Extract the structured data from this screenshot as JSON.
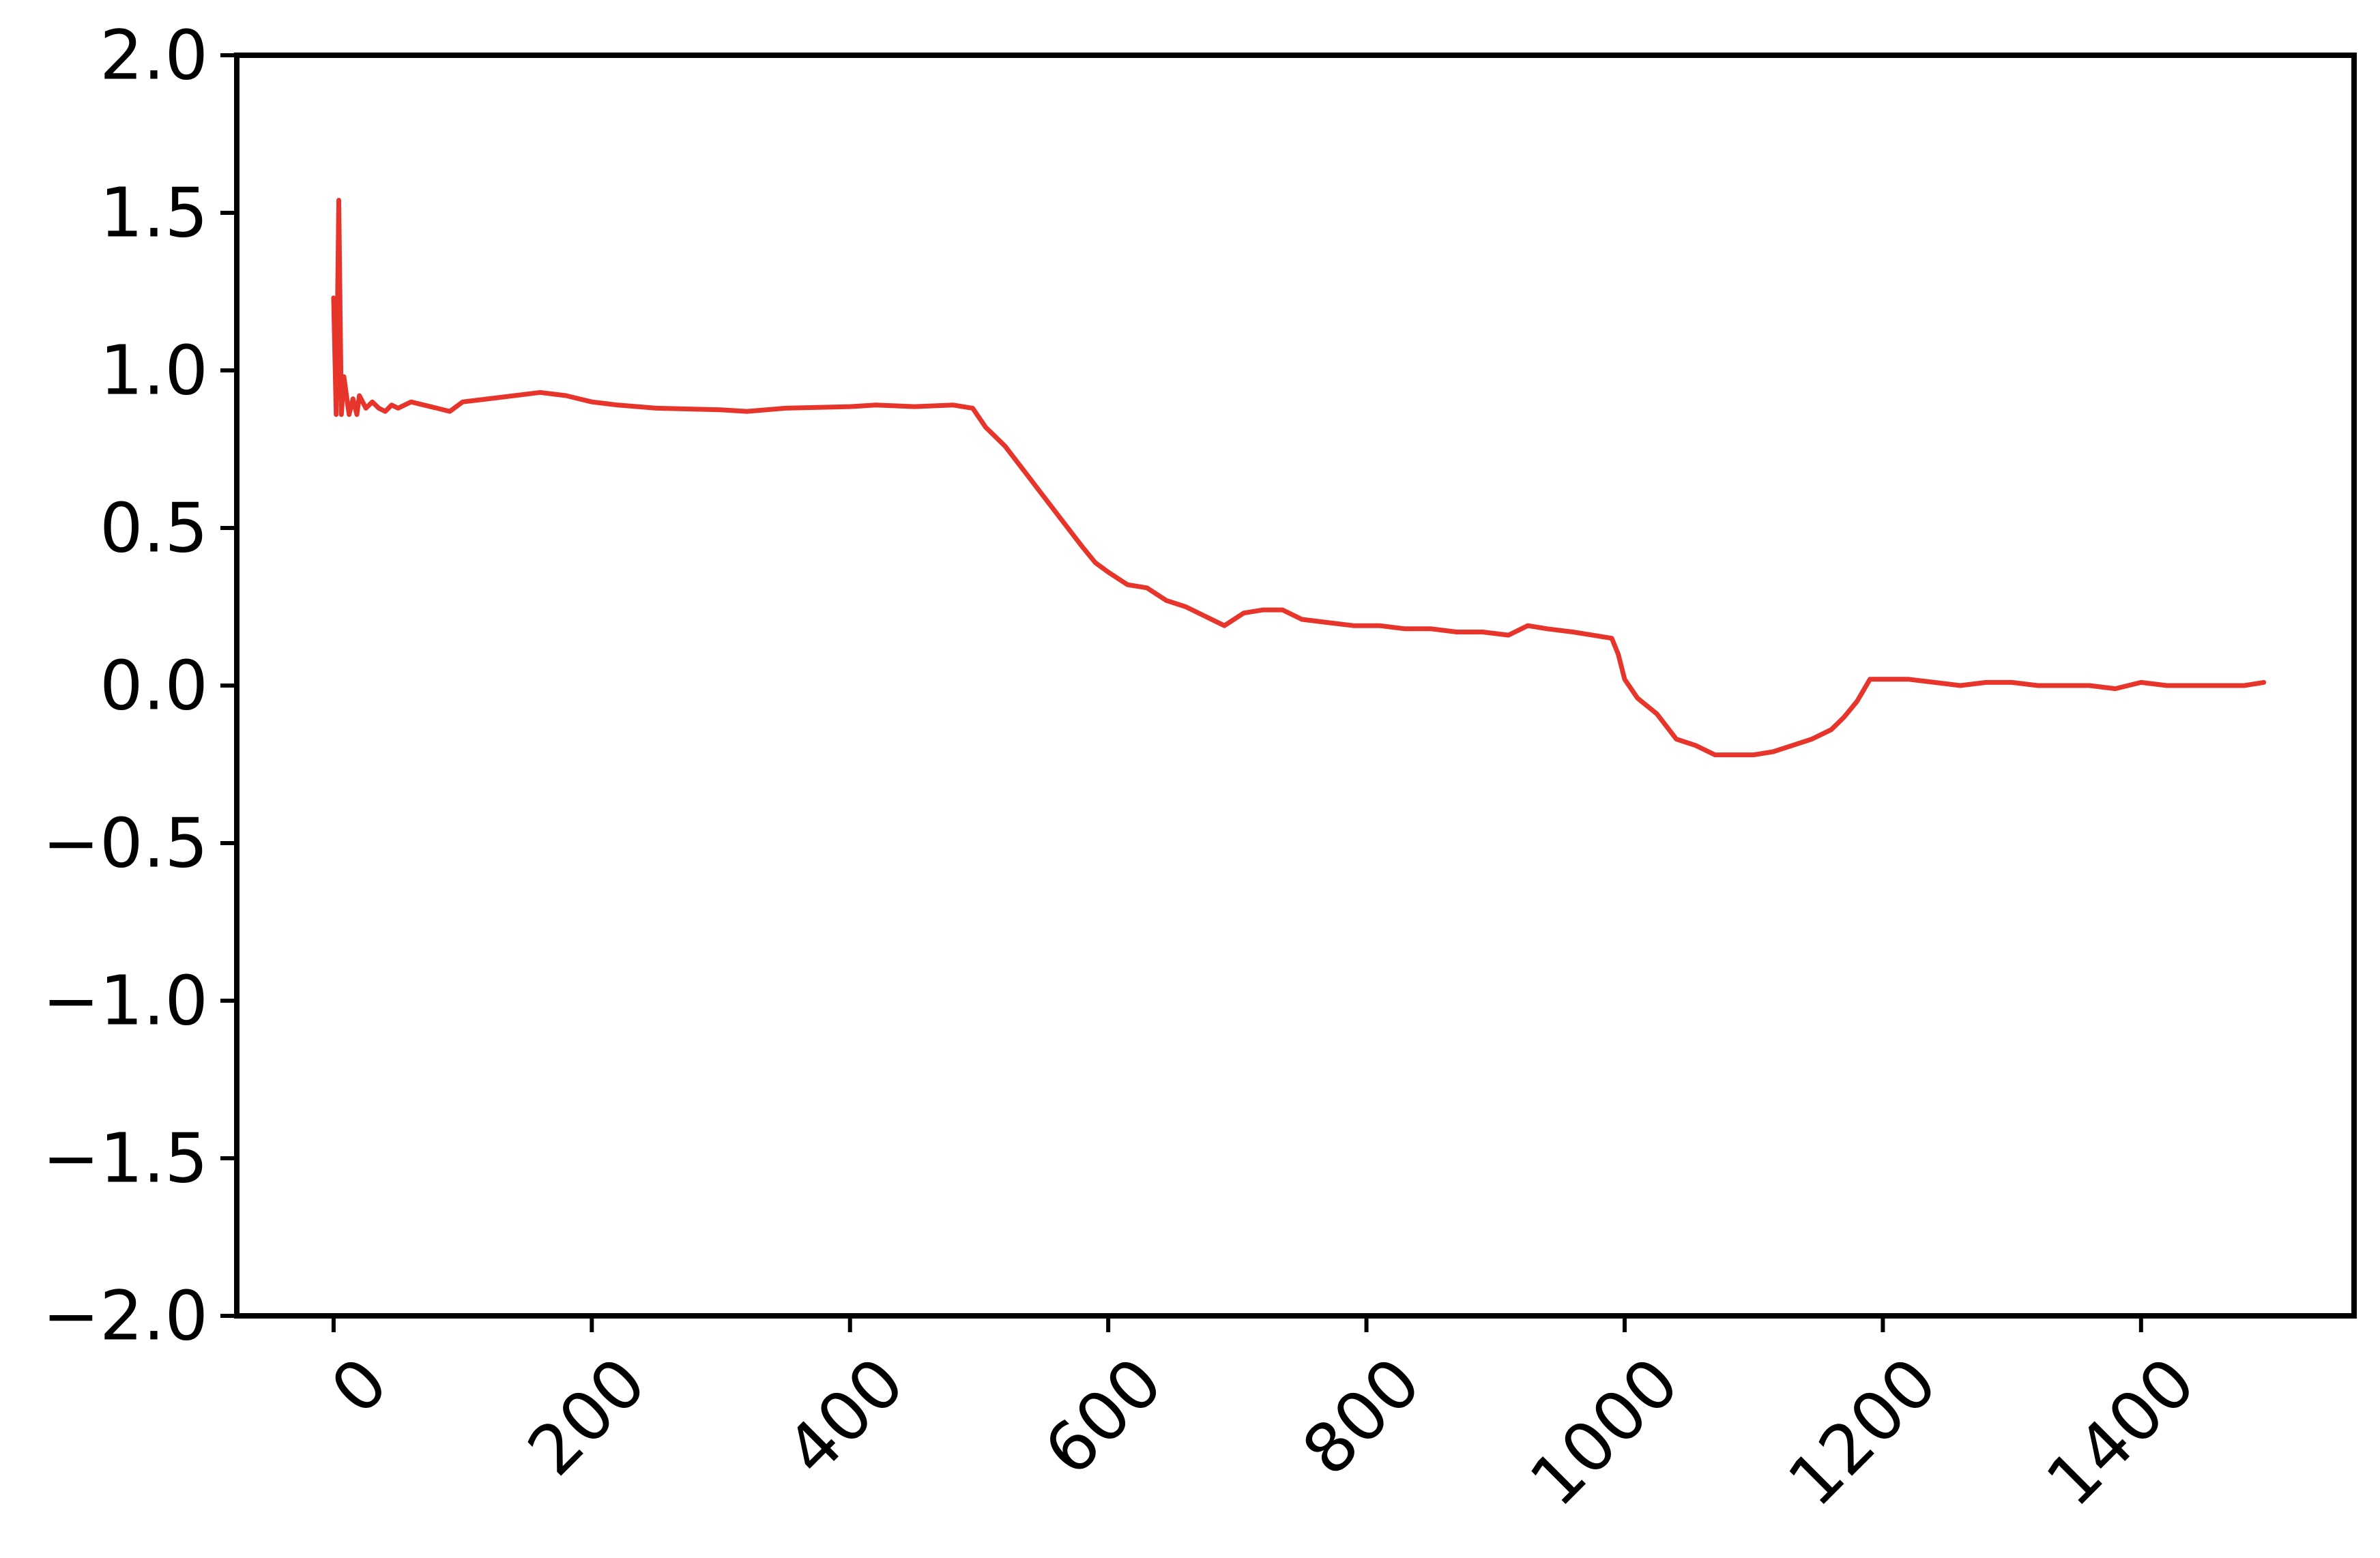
{
  "chart_data": {
    "type": "line",
    "title": "",
    "xlabel": "",
    "ylabel": "",
    "xlim": [
      -75,
      1565
    ],
    "ylim": [
      -2.0,
      2.0
    ],
    "x_ticks": [
      0,
      200,
      400,
      600,
      800,
      1000,
      1200,
      1400
    ],
    "x_tick_labels": [
      "0",
      "200",
      "400",
      "600",
      "800",
      "1000",
      "1200",
      "1400"
    ],
    "y_ticks": [
      2.0,
      1.5,
      1.0,
      0.5,
      0.0,
      -0.5,
      -1.0,
      -1.5,
      -2.0
    ],
    "y_tick_labels": [
      "2.0",
      "1.5",
      "1.0",
      "0.5",
      "0.0",
      "−0.5",
      "−1.0",
      "−1.5",
      "−2.0"
    ],
    "grid": false,
    "legend": "none",
    "series": [
      {
        "color": "#e8352b",
        "x": [
          0,
          2,
          4,
          6,
          8,
          10,
          12,
          15,
          18,
          20,
          25,
          30,
          35,
          40,
          45,
          50,
          60,
          70,
          80,
          90,
          100,
          120,
          140,
          160,
          180,
          200,
          220,
          250,
          300,
          320,
          350,
          400,
          420,
          450,
          480,
          495,
          505,
          520,
          535,
          550,
          565,
          580,
          590,
          600,
          615,
          630,
          645,
          660,
          675,
          690,
          705,
          720,
          735,
          750,
          770,
          790,
          810,
          830,
          850,
          870,
          890,
          910,
          925,
          940,
          960,
          975,
          990,
          995,
          1000,
          1010,
          1025,
          1040,
          1055,
          1070,
          1085,
          1100,
          1115,
          1130,
          1145,
          1160,
          1170,
          1180,
          1190,
          1200,
          1220,
          1240,
          1260,
          1280,
          1300,
          1320,
          1340,
          1360,
          1380,
          1400,
          1420,
          1440,
          1460,
          1480,
          1495
        ],
        "y": [
          1.23,
          0.86,
          1.54,
          0.86,
          0.98,
          0.92,
          0.86,
          0.91,
          0.86,
          0.92,
          0.88,
          0.9,
          0.88,
          0.87,
          0.89,
          0.88,
          0.9,
          0.89,
          0.88,
          0.87,
          0.9,
          0.91,
          0.92,
          0.93,
          0.92,
          0.9,
          0.89,
          0.88,
          0.875,
          0.87,
          0.88,
          0.885,
          0.89,
          0.885,
          0.89,
          0.88,
          0.82,
          0.76,
          0.68,
          0.6,
          0.52,
          0.44,
          0.39,
          0.36,
          0.32,
          0.31,
          0.27,
          0.25,
          0.22,
          0.19,
          0.23,
          0.24,
          0.24,
          0.21,
          0.2,
          0.19,
          0.19,
          0.18,
          0.18,
          0.17,
          0.17,
          0.16,
          0.19,
          0.18,
          0.17,
          0.16,
          0.15,
          0.1,
          0.02,
          -0.04,
          -0.09,
          -0.17,
          -0.19,
          -0.22,
          -0.22,
          -0.22,
          -0.21,
          -0.19,
          -0.17,
          -0.14,
          -0.1,
          -0.05,
          0.02,
          0.02,
          0.02,
          0.01,
          0.0,
          0.01,
          0.01,
          0.0,
          0.0,
          0.0,
          -0.01,
          0.01,
          0.0,
          0.0,
          0.0,
          0.0,
          0.01
        ]
      }
    ]
  }
}
